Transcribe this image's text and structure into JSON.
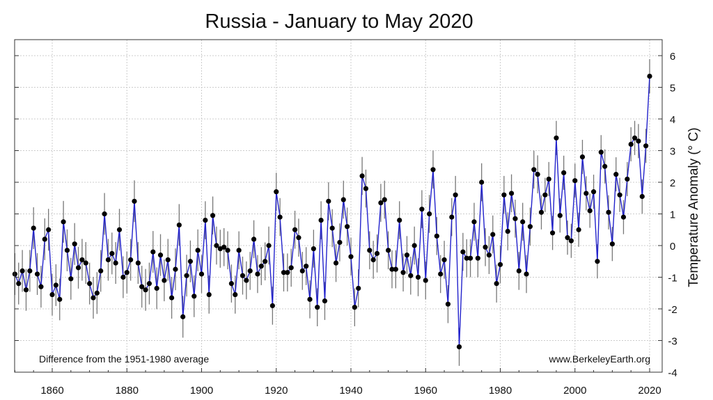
{
  "chart_data": {
    "type": "line",
    "title": "Russia - January to May 2020",
    "xlabel": "",
    "ylabel": "Temperature Anomaly (° C)",
    "xlim": [
      1848.5,
      2022
    ],
    "ylim": [
      -4,
      6.6
    ],
    "x_ticks": [
      1860,
      1880,
      1900,
      1920,
      1940,
      1960,
      1980,
      2000,
      2020
    ],
    "y_ticks": [
      -4,
      -3,
      -2,
      -1,
      0,
      1,
      2,
      3,
      4,
      5,
      6
    ],
    "grid": true,
    "annotation_left": "Difference from the 1951-1980 average",
    "annotation_right": "www.BerkeleyEarth.org",
    "colors": {
      "line": "#2222cc",
      "marker": "#000000",
      "errorbar": "#777777",
      "grid": "#cccccc"
    },
    "uncertainty": 0.6,
    "x_start": 1850,
    "series": [
      {
        "name": "Temperature anomaly",
        "values": [
          -0.9,
          -1.2,
          -0.8,
          -1.4,
          -0.8,
          0.55,
          -0.9,
          -1.3,
          0.2,
          0.5,
          -1.55,
          -1.25,
          -1.7,
          0.75,
          -0.15,
          -1.05,
          0.05,
          -0.7,
          -0.45,
          -0.55,
          -1.2,
          -1.65,
          -1.5,
          -0.8,
          1.0,
          -0.45,
          -0.25,
          -0.55,
          0.5,
          -1.0,
          -0.85,
          -0.45,
          1.4,
          -0.55,
          -1.3,
          -1.4,
          -1.2,
          -0.2,
          -1.35,
          -0.3,
          -1.1,
          -0.45,
          -1.65,
          -0.75,
          0.65,
          -2.25,
          -0.95,
          -0.5,
          -1.6,
          -0.15,
          -0.9,
          0.8,
          -1.55,
          0.95,
          0.0,
          -0.1,
          -0.05,
          -0.15,
          -1.2,
          -1.55,
          -0.15,
          -0.95,
          -1.1,
          -0.8,
          0.2,
          -0.9,
          -0.65,
          -0.5,
          0.0,
          -1.9,
          1.7,
          0.9,
          -0.85,
          -0.85,
          -0.7,
          0.5,
          0.25,
          -0.8,
          -0.65,
          -1.7,
          -0.1,
          -1.95,
          0.8,
          -1.75,
          1.4,
          0.55,
          -0.55,
          0.1,
          1.45,
          0.6,
          -0.35,
          -1.95,
          -1.35,
          2.2,
          1.8,
          -0.15,
          -0.45,
          -0.25,
          1.35,
          1.45,
          -0.15,
          -0.75,
          -0.75,
          0.8,
          -0.85,
          -0.3,
          -0.95,
          0.0,
          -1.0,
          1.15,
          -1.1,
          1.0,
          2.4,
          0.3,
          -0.9,
          -0.45,
          -1.85,
          0.9,
          1.6,
          -3.2,
          -0.2,
          -0.4,
          -0.4,
          0.75,
          -0.4,
          2.0,
          -0.05,
          -0.3,
          0.35,
          -1.2,
          -0.6,
          1.6,
          0.45,
          1.65,
          0.85,
          -0.8,
          0.75,
          -0.9,
          0.6,
          2.4,
          2.25,
          1.05,
          1.6,
          2.1,
          0.4,
          3.4,
          0.95,
          2.3,
          0.25,
          0.15,
          2.05,
          0.5,
          2.8,
          1.65,
          1.1,
          1.7,
          -0.5,
          2.95,
          2.5,
          1.05,
          0.05,
          2.25,
          1.6,
          0.9,
          2.1,
          3.2,
          3.4,
          3.3,
          1.55,
          3.15,
          5.35
        ]
      }
    ]
  }
}
